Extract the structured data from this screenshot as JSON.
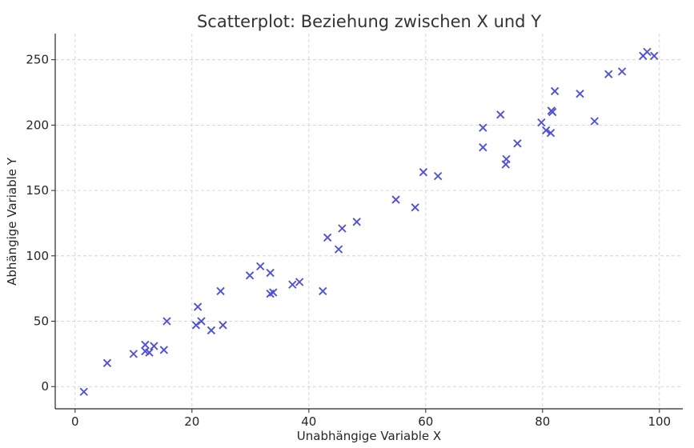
{
  "chart_data": {
    "type": "scatter",
    "title": "Scatterplot: Beziehung zwischen X und Y",
    "xlabel": "Unabhängige Variable X",
    "ylabel": "Abhängige Variable Y",
    "xlim": [
      -3.4,
      104
    ],
    "ylim": [
      -17,
      270
    ],
    "xticks": [
      0,
      20,
      40,
      60,
      80,
      100
    ],
    "yticks": [
      0,
      50,
      100,
      150,
      200,
      250
    ],
    "grid": true,
    "marker": "x",
    "color": "#5050e0",
    "points": [
      [
        1.5,
        -4
      ],
      [
        5.5,
        18
      ],
      [
        10,
        25
      ],
      [
        12,
        32
      ],
      [
        12,
        27
      ],
      [
        12.7,
        26
      ],
      [
        13.5,
        31
      ],
      [
        15.2,
        28
      ],
      [
        15.7,
        50
      ],
      [
        20.7,
        47
      ],
      [
        21,
        61
      ],
      [
        21.6,
        50
      ],
      [
        23.3,
        43
      ],
      [
        24.9,
        73
      ],
      [
        25.3,
        47
      ],
      [
        29.9,
        85
      ],
      [
        31.7,
        92
      ],
      [
        33.4,
        87
      ],
      [
        33.4,
        71
      ],
      [
        33.9,
        72
      ],
      [
        37.2,
        78
      ],
      [
        38.4,
        80
      ],
      [
        42.4,
        73
      ],
      [
        43.2,
        114
      ],
      [
        45.1,
        105
      ],
      [
        45.7,
        121
      ],
      [
        48.2,
        126
      ],
      [
        54.9,
        143
      ],
      [
        58.2,
        137
      ],
      [
        59.6,
        164
      ],
      [
        62.1,
        161
      ],
      [
        69.8,
        198
      ],
      [
        69.8,
        183
      ],
      [
        72.8,
        208
      ],
      [
        73.7,
        170
      ],
      [
        73.8,
        174
      ],
      [
        75.7,
        186
      ],
      [
        79.8,
        202
      ],
      [
        80.6,
        196
      ],
      [
        81.4,
        194
      ],
      [
        81.5,
        211
      ],
      [
        81.7,
        210
      ],
      [
        82.1,
        226
      ],
      [
        86.4,
        224
      ],
      [
        88.9,
        203
      ],
      [
        91.3,
        239
      ],
      [
        93.6,
        241
      ],
      [
        97.2,
        253
      ],
      [
        97.9,
        256
      ],
      [
        99.1,
        253
      ]
    ]
  }
}
